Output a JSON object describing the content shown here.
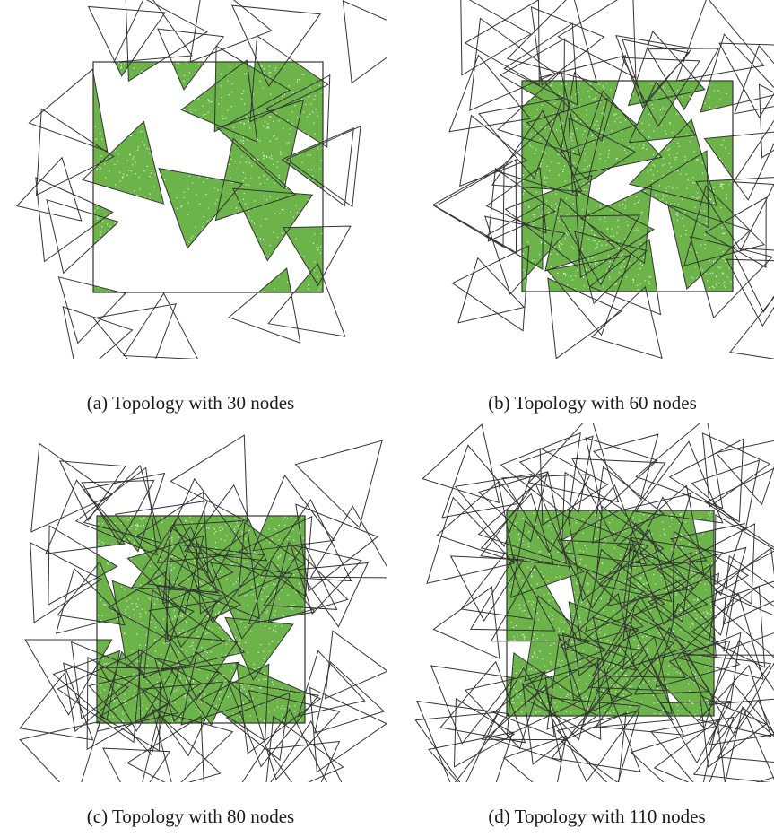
{
  "colors": {
    "coverage_fill": "#6cb34a",
    "stroke": "#333333",
    "speckle": "#ffffff"
  },
  "figure": {
    "panels": [
      {
        "id": "a",
        "caption": "(a) Topology with 30 nodes",
        "nodes": 30,
        "coverage": "partial"
      },
      {
        "id": "b",
        "caption": "(b) Topology with 60 nodes",
        "nodes": 60,
        "coverage": "high"
      },
      {
        "id": "c",
        "caption": "(c) Topology with 80 nodes",
        "nodes": 80,
        "coverage": "high"
      },
      {
        "id": "d",
        "caption": "(d) Topology with 110 nodes",
        "nodes": 110,
        "coverage": "near-full"
      }
    ]
  }
}
